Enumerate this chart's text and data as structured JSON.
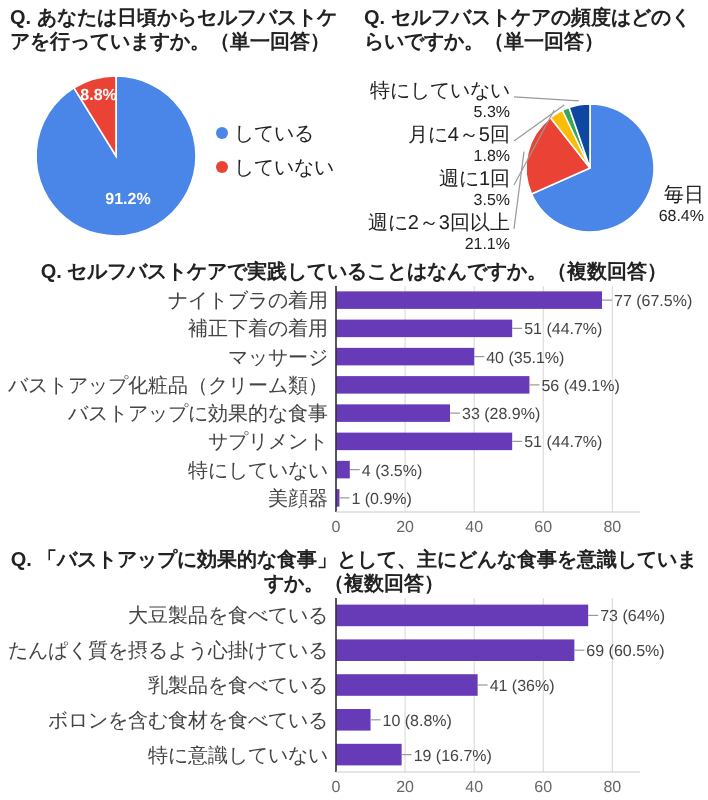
{
  "chart_data": [
    {
      "type": "pie",
      "title": "Q. あなたは日頃からセルフバストケアを行っていますか。（単一回答）",
      "categories": [
        "している",
        "していない"
      ],
      "values": [
        91.2,
        8.8
      ],
      "colors": [
        "#4a86e8",
        "#ea4335"
      ],
      "value_labels": [
        "91.2%",
        "8.8%"
      ],
      "legend": "right"
    },
    {
      "type": "pie",
      "title": "Q. セルフバストケアの頻度はどのくらいですか。（単一回答）",
      "categories": [
        "毎日",
        "週に2～3回以上",
        "週に1回",
        "月に4～5回",
        "特にしていない"
      ],
      "values": [
        68.4,
        21.1,
        3.5,
        1.8,
        5.3
      ],
      "colors": [
        "#4a86e8",
        "#ea4335",
        "#fbbc04",
        "#34a853",
        "#0d47a1"
      ],
      "value_labels": [
        "68.4%",
        "21.1%",
        "3.5%",
        "1.8%",
        "5.3%"
      ]
    },
    {
      "type": "bar",
      "orientation": "horizontal",
      "title": "Q. セルフバストケアで実践していることはなんですか。（複数回答）",
      "categories": [
        "ナイトブラの着用",
        "補正下着の着用",
        "マッサージ",
        "バストアップ化粧品（クリーム類）",
        "バストアップに効果的な食事",
        "サプリメント",
        "特にしていない",
        "美顔器"
      ],
      "values": [
        77,
        51,
        40,
        56,
        33,
        51,
        4,
        1
      ],
      "value_labels": [
        "77 (67.5%)",
        "51 (44.7%)",
        "40 (35.1%)",
        "56 (49.1%)",
        "33 (28.9%)",
        "51 (44.7%)",
        "4 (3.5%)",
        "1 (0.9%)"
      ],
      "color": "#673ab7",
      "xlim": [
        0,
        88
      ],
      "xticks": [
        0,
        20,
        40,
        60,
        80
      ],
      "grid": "x"
    },
    {
      "type": "bar",
      "orientation": "horizontal",
      "title": "Q. 「バストアップに効果的な食事」として、主にどんな食事を意識していますか。（複数回答）",
      "categories": [
        "大豆製品を食べている",
        "たんぱく質を摂るよう心掛けている",
        "乳製品を食べている",
        "ボロンを含む食材を食べている",
        "特に意識していない"
      ],
      "values": [
        73,
        69,
        41,
        10,
        19
      ],
      "value_labels": [
        "73 (64%)",
        "69 (60.5%)",
        "41 (36%)",
        "10 (8.8%)",
        "19 (16.7%)"
      ],
      "color": "#673ab7",
      "xlim": [
        0,
        88
      ],
      "xticks": [
        0,
        20,
        40,
        60,
        80
      ],
      "grid": "x"
    }
  ]
}
